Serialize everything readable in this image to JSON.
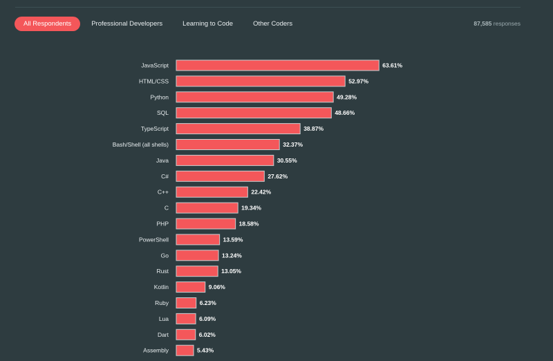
{
  "tabs": [
    {
      "label": "All Respondents",
      "active": true
    },
    {
      "label": "Professional Developers",
      "active": false
    },
    {
      "label": "Learning to Code",
      "active": false
    },
    {
      "label": "Other Coders",
      "active": false
    }
  ],
  "responses": {
    "count": "87,585",
    "label": "responses"
  },
  "colors": {
    "bar": "#f4575a",
    "background": "#2e3c40",
    "accent": "#f4575a"
  },
  "chart_data": {
    "type": "bar",
    "orientation": "horizontal",
    "title": "",
    "xlabel": "",
    "ylabel": "",
    "xlim": [
      0,
      100
    ],
    "value_suffix": "%",
    "categories": [
      "JavaScript",
      "HTML/CSS",
      "Python",
      "SQL",
      "TypeScript",
      "Bash/Shell (all shells)",
      "Java",
      "C#",
      "C++",
      "C",
      "PHP",
      "PowerShell",
      "Go",
      "Rust",
      "Kotlin",
      "Ruby",
      "Lua",
      "Dart",
      "Assembly"
    ],
    "values": [
      63.61,
      52.97,
      49.28,
      48.66,
      38.87,
      32.37,
      30.55,
      27.62,
      22.42,
      19.34,
      18.58,
      13.59,
      13.24,
      13.05,
      9.06,
      6.23,
      6.09,
      6.02,
      5.43
    ]
  }
}
